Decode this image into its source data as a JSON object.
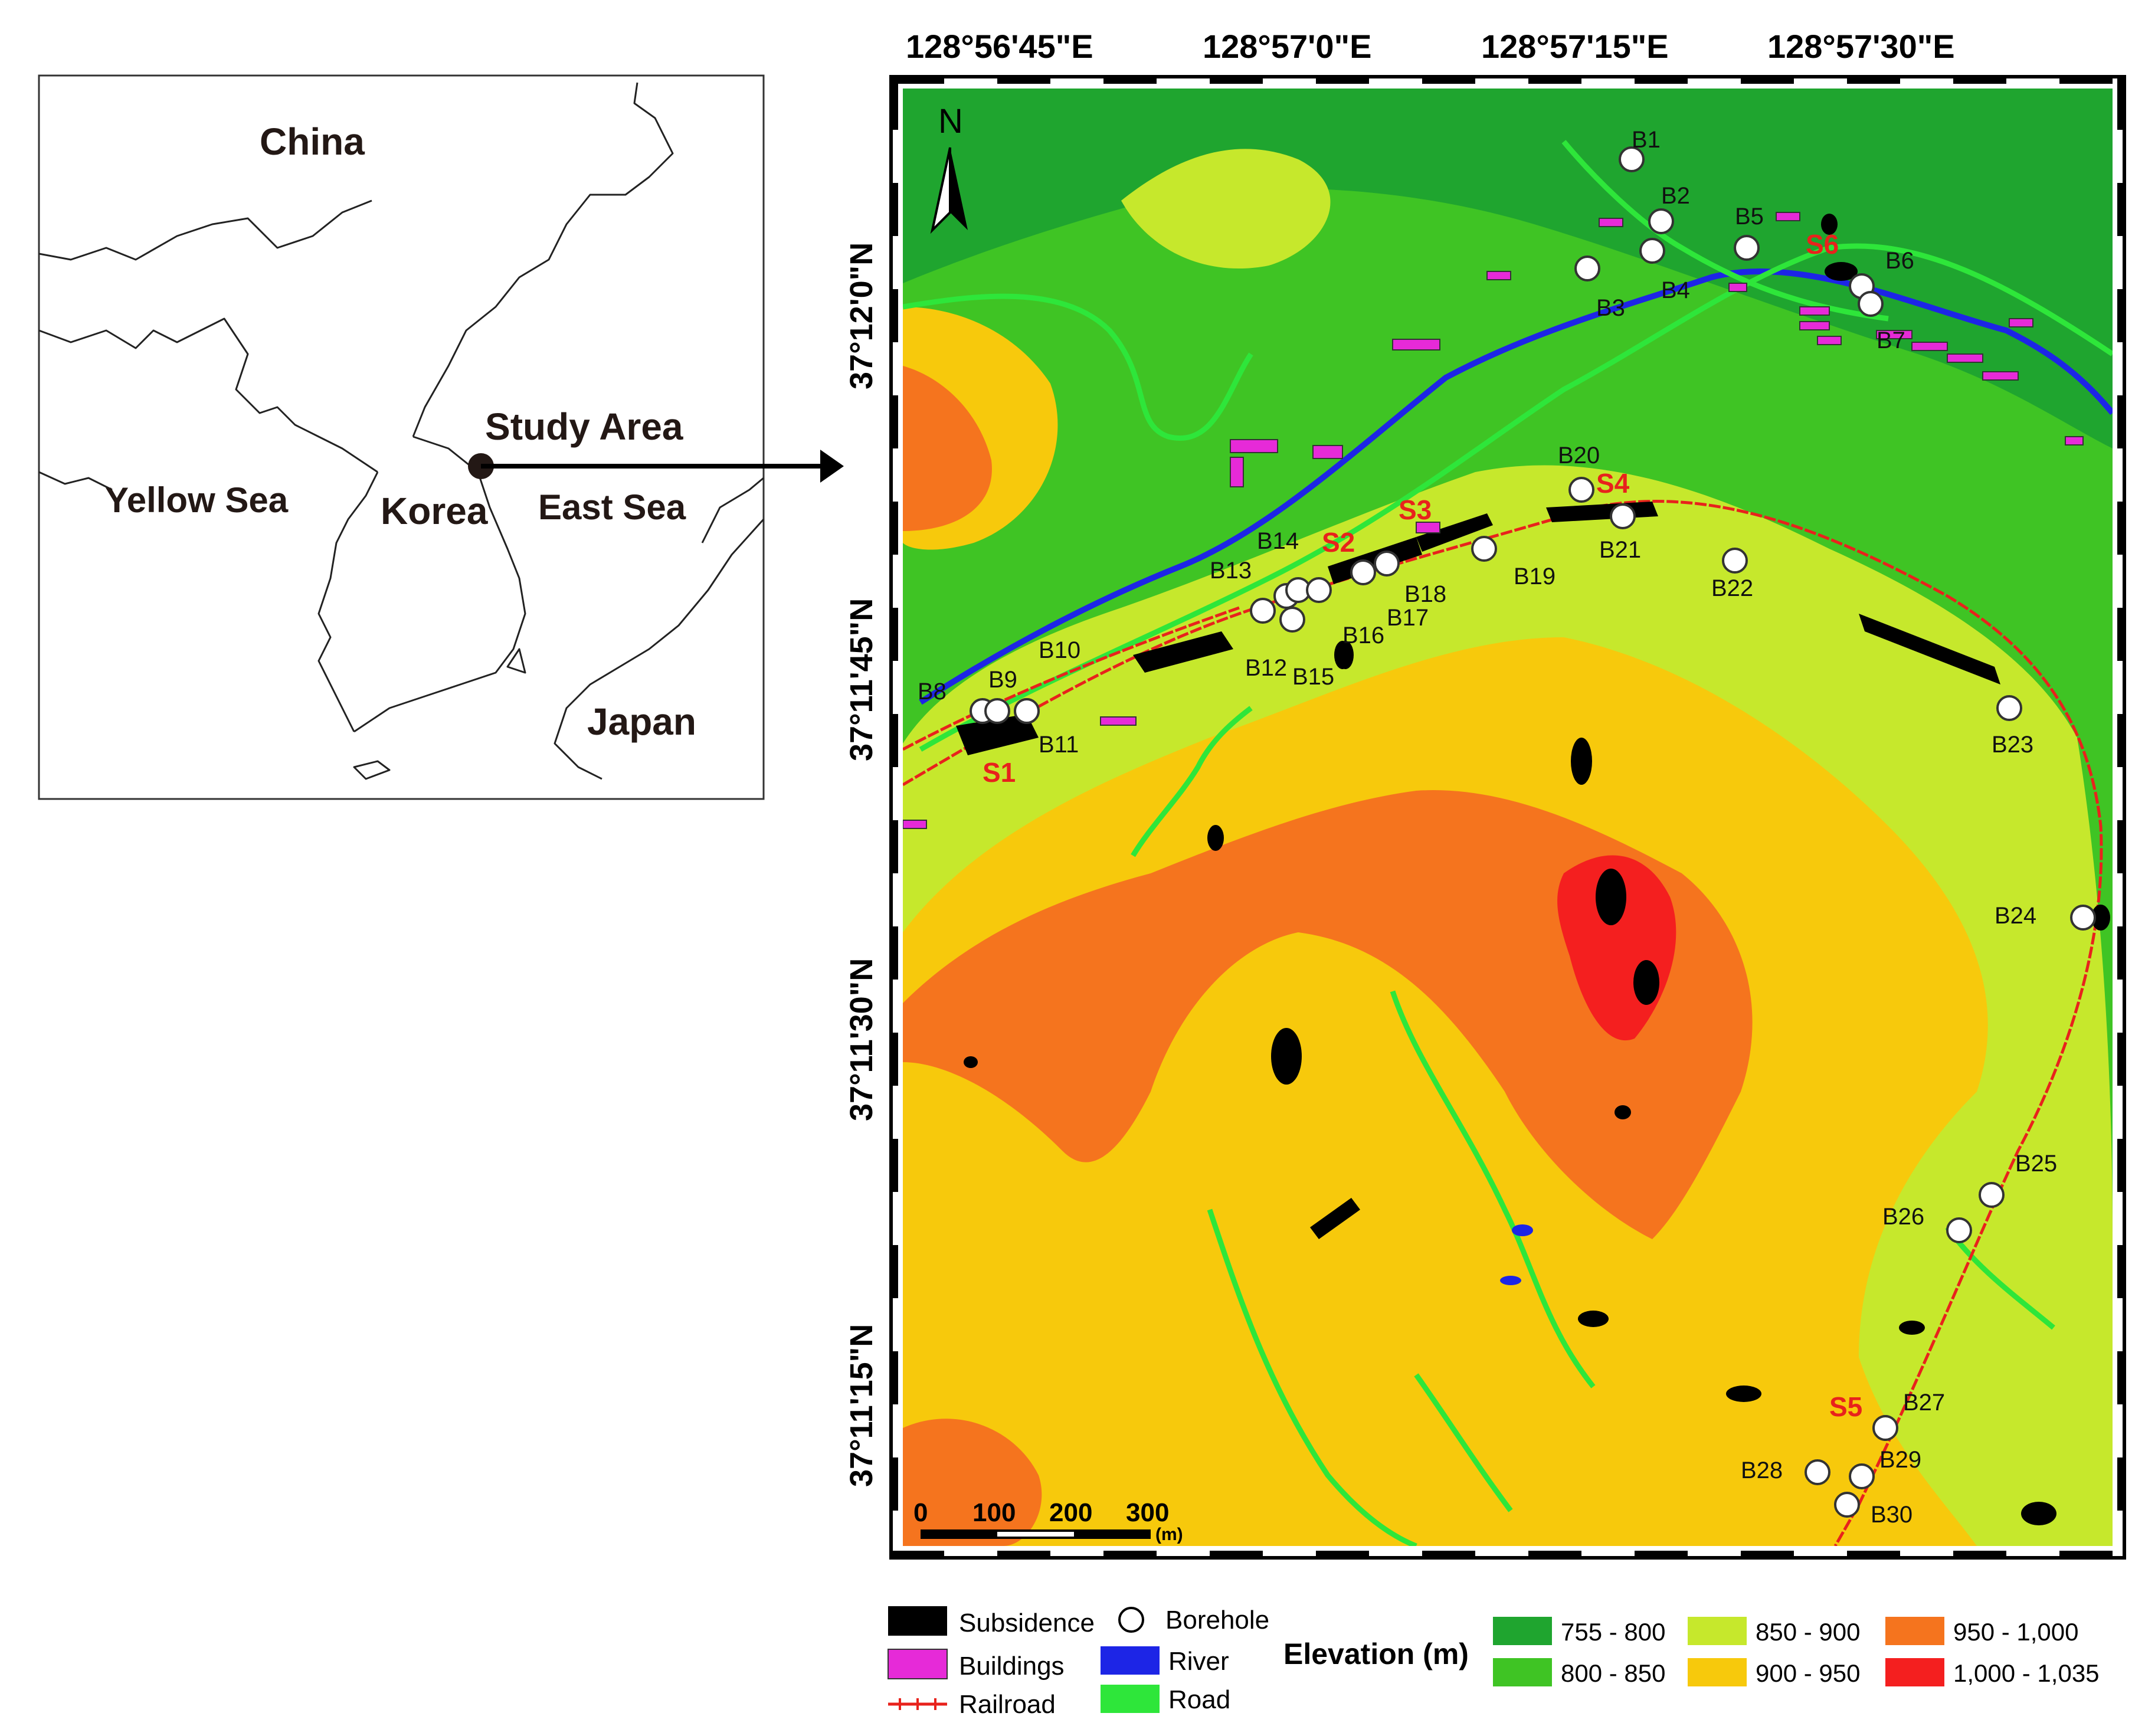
{
  "inset_map": {
    "labels": {
      "china": "China",
      "yellow_sea": "Yellow Sea",
      "korea": "Korea",
      "east_sea": "East Sea",
      "japan": "Japan",
      "study_area": "Study Area"
    }
  },
  "main_map": {
    "north_label": "N",
    "top_longitudes": [
      "128°56'45\"E",
      "128°57'0\"E",
      "128°57'15\"E",
      "128°57'30\"E"
    ],
    "left_latitudes": [
      "37°12'0\"N",
      "37°11'45\"N",
      "37°11'30\"N",
      "37°11'15\"N"
    ],
    "scale_bar": {
      "ticks": [
        "0",
        "100",
        "200",
        "300"
      ],
      "unit": "(m)"
    },
    "boreholes": [
      "B1",
      "B2",
      "B3",
      "B4",
      "B5",
      "B6",
      "B7",
      "B8",
      "B9",
      "B10",
      "B11",
      "B12",
      "B13",
      "B14",
      "B15",
      "B16",
      "B17",
      "B18",
      "B19",
      "B20",
      "B21",
      "B22",
      "B23",
      "B24",
      "B25",
      "B26",
      "B27",
      "B28",
      "B29",
      "B30"
    ],
    "subsidence_sites": [
      "S1",
      "S2",
      "S3",
      "S4",
      "S5",
      "S6"
    ]
  },
  "legend": {
    "symbols": {
      "subsidence": "Subsidence",
      "buildings": "Buildings",
      "railroad": "Railroad",
      "borehole": "Borehole",
      "river": "River",
      "road": "Road"
    },
    "elevation_title": "Elevation (m)",
    "elevation_classes": [
      {
        "label": "755 - 800",
        "color": "#1fa52f"
      },
      {
        "label": "800 - 850",
        "color": "#3fc424"
      },
      {
        "label": "850 - 900",
        "color": "#c6e82c"
      },
      {
        "label": "900 - 950",
        "color": "#f7c90c"
      },
      {
        "label": "950 - 1,000",
        "color": "#f5741e"
      },
      {
        "label": "1,000 - 1,035",
        "color": "#f41f1f"
      }
    ],
    "colors": {
      "subsidence": "#000000",
      "buildings": "#e62ad8",
      "railroad": "#e8221c",
      "river": "#1d25e6",
      "road": "#2ee63a"
    }
  }
}
